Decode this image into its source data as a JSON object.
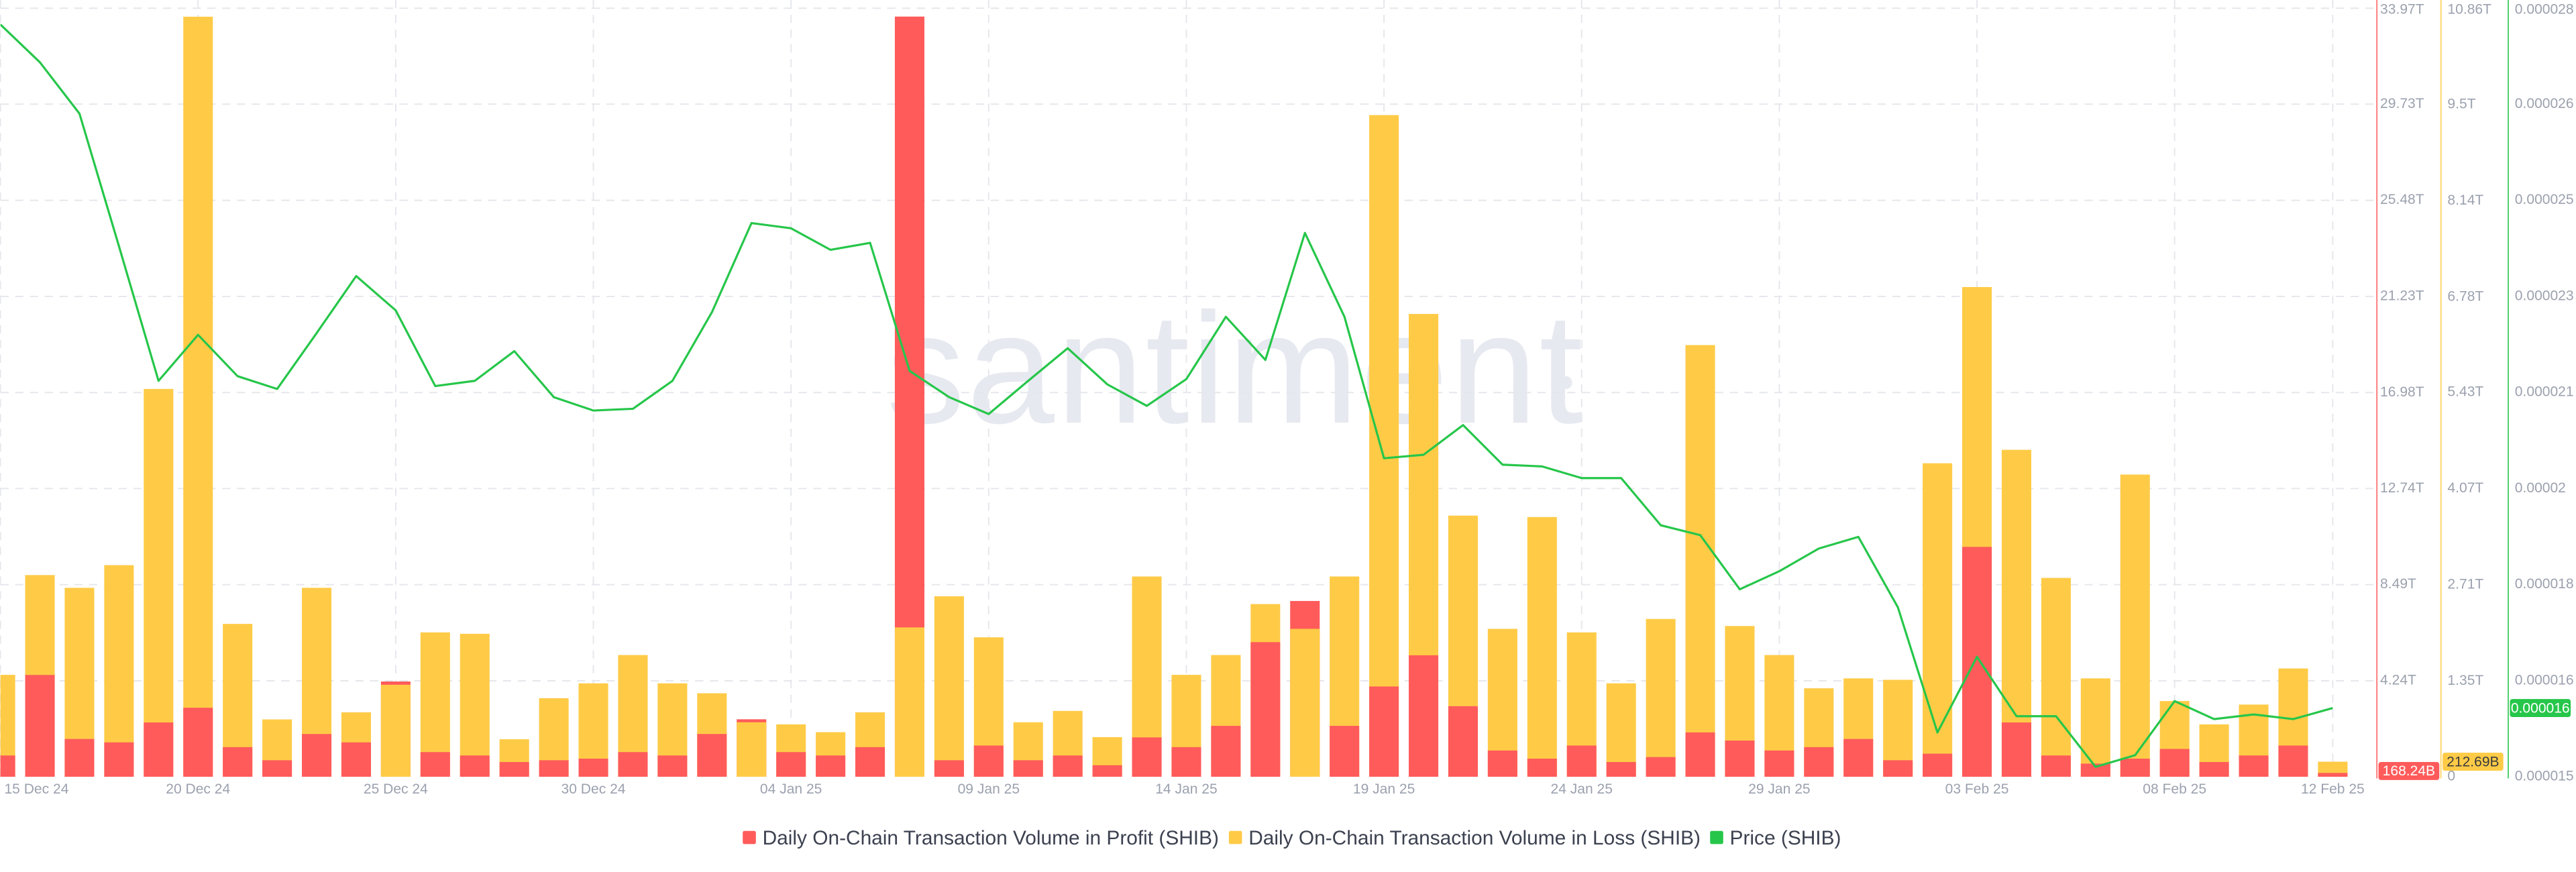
{
  "chart_data": {
    "type": "bar",
    "watermark": "santiment",
    "categories": [
      "15 Dec 24",
      null,
      null,
      null,
      null,
      "20 Dec 24",
      null,
      null,
      null,
      null,
      "25 Dec 24",
      null,
      null,
      null,
      null,
      "30 Dec 24",
      null,
      null,
      null,
      null,
      "04 Jan 25",
      null,
      null,
      null,
      null,
      "09 Jan 25",
      null,
      null,
      null,
      null,
      "14 Jan 25",
      null,
      null,
      null,
      null,
      "19 Jan 25",
      null,
      null,
      null,
      null,
      "24 Jan 25",
      null,
      null,
      null,
      null,
      "29 Jan 25",
      null,
      null,
      null,
      null,
      "03 Feb 25",
      null,
      null,
      null,
      null,
      "08 Feb 25",
      null,
      null,
      null,
      "12 Feb 25"
    ],
    "series": [
      {
        "name": "Daily On-Chain Transaction Volume in Profit (SHIB)",
        "type": "bar",
        "axis": "y",
        "color": "#ff5b5b",
        "values": [
          0.94,
          4.5,
          1.67,
          1.52,
          2.4,
          3.05,
          1.31,
          0.73,
          1.89,
          1.52,
          4.21,
          1.09,
          0.94,
          0.65,
          0.73,
          0.8,
          1.09,
          0.94,
          1.89,
          2.54,
          1.09,
          0.94,
          1.31,
          33.6,
          0.73,
          1.38,
          0.73,
          0.94,
          0.51,
          1.74,
          1.31,
          2.25,
          5.95,
          7.77,
          2.25,
          3.99,
          5.37,
          3.12,
          1.16,
          0.8,
          1.38,
          0.65,
          0.87,
          1.96,
          1.6,
          1.16,
          1.31,
          1.67,
          0.73,
          1.02,
          10.16,
          2.4,
          0.94,
          0.58,
          0.8,
          1.23,
          0.65,
          0.94,
          1.38,
          0.16824
        ],
        "value_labels": [
          null,
          null,
          null,
          null,
          null,
          null,
          null,
          null,
          null,
          null,
          null,
          null,
          null,
          null,
          null,
          null,
          null,
          null,
          null,
          null,
          null,
          null,
          null,
          null,
          null,
          null,
          null,
          null,
          null,
          null,
          null,
          null,
          null,
          null,
          null,
          null,
          null,
          null,
          null,
          null,
          null,
          null,
          null,
          null,
          null,
          null,
          null,
          null,
          null,
          null,
          null,
          null,
          null,
          null,
          null,
          null,
          null,
          null,
          null,
          "168.24B"
        ]
      },
      {
        "name": "Daily On-Chain Transaction Volume in Loss (SHIB)",
        "type": "bar",
        "axis": "y2",
        "color": "#ffcb47",
        "values": [
          1.44,
          2.85,
          2.67,
          2.99,
          5.48,
          10.74,
          2.16,
          0.81,
          2.67,
          0.91,
          1.3,
          2.04,
          2.02,
          0.53,
          1.11,
          1.32,
          1.72,
          1.32,
          1.18,
          0.77,
          0.74,
          0.63,
          0.91,
          2.11,
          2.55,
          1.97,
          0.77,
          0.93,
          0.56,
          2.83,
          1.44,
          1.72,
          2.44,
          2.09,
          2.83,
          9.35,
          6.54,
          3.69,
          2.09,
          3.67,
          2.04,
          1.32,
          2.23,
          6.1,
          2.13,
          1.72,
          1.25,
          1.39,
          1.37,
          4.43,
          6.92,
          4.62,
          2.81,
          1.39,
          4.27,
          1.07,
          0.74,
          1.02,
          1.53,
          0.21269
        ],
        "value_labels": [
          null,
          null,
          null,
          null,
          null,
          null,
          null,
          null,
          null,
          null,
          null,
          null,
          null,
          null,
          null,
          null,
          null,
          null,
          null,
          null,
          null,
          null,
          null,
          null,
          null,
          null,
          null,
          null,
          null,
          null,
          null,
          null,
          null,
          null,
          null,
          null,
          null,
          null,
          null,
          null,
          null,
          null,
          null,
          null,
          null,
          null,
          null,
          null,
          null,
          null,
          null,
          null,
          null,
          null,
          null,
          null,
          null,
          null,
          null,
          "212.69B"
        ]
      },
      {
        "name": "Price (SHIB)",
        "type": "line",
        "axis": "y3",
        "color": "#26c64a",
        "values": [
          2.762e-05,
          2.697e-05,
          2.609e-05,
          2.381e-05,
          2.15e-05,
          2.229e-05,
          2.158e-05,
          2.136e-05,
          2.232e-05,
          2.33e-05,
          2.271e-05,
          2.141e-05,
          2.15e-05,
          2.201e-05,
          2.122e-05,
          2.099e-05,
          2.102e-05,
          2.15e-05,
          2.268e-05,
          2.421e-05,
          2.412e-05,
          2.375e-05,
          2.387e-05,
          2.167e-05,
          2.122e-05,
          2.093e-05,
          2.15e-05,
          2.206e-05,
          2.144e-05,
          2.107e-05,
          2.153e-05,
          2.26e-05,
          2.186e-05,
          2.404e-05,
          2.26e-05,
          2.017e-05,
          2.023e-05,
          2.074e-05,
          2.006e-05,
          2.003e-05,
          1.983e-05,
          1.983e-05,
          1.902e-05,
          1.885e-05,
          1.792e-05,
          1.823e-05,
          1.862e-05,
          1.882e-05,
          1.761e-05,
          1.546e-05,
          1.676e-05,
          1.574e-05,
          1.574e-05,
          1.487e-05,
          1.507e-05,
          1.6e-05,
          1.569e-05,
          1.577e-05,
          1.569e-05,
          1.588e-05
        ],
        "value_labels": [
          null,
          null,
          null,
          null,
          null,
          null,
          null,
          null,
          null,
          null,
          null,
          null,
          null,
          null,
          null,
          null,
          null,
          null,
          null,
          null,
          null,
          null,
          null,
          null,
          null,
          null,
          null,
          null,
          null,
          null,
          null,
          null,
          null,
          null,
          null,
          null,
          null,
          null,
          null,
          null,
          null,
          null,
          null,
          null,
          null,
          null,
          null,
          null,
          null,
          null,
          null,
          null,
          null,
          null,
          null,
          null,
          null,
          null,
          null,
          "0.000016"
        ]
      }
    ],
    "ylim": [
      0,
      33.97
    ],
    "yticks": [
      {
        "value": 4.24,
        "label": "4.24T"
      },
      {
        "value": 8.49,
        "label": "8.49T"
      },
      {
        "value": 12.74,
        "label": "12.74T"
      },
      {
        "value": 16.98,
        "label": "16.98T"
      },
      {
        "value": 21.23,
        "label": "21.23T"
      },
      {
        "value": 25.48,
        "label": "25.48T"
      },
      {
        "value": 29.73,
        "label": "29.73T"
      },
      {
        "value": 33.97,
        "label": "33.97T"
      }
    ],
    "y2lim": [
      0,
      10.86
    ],
    "y2ticks": [
      0,
      {
        "value": 1.35,
        "label": "1.35T"
      },
      {
        "value": 2.71,
        "label": "2.71T"
      },
      {
        "value": 4.07,
        "label": "4.07T"
      },
      {
        "value": 5.43,
        "label": "5.43T"
      },
      {
        "value": 6.78,
        "label": "6.78T"
      },
      {
        "value": 8.14,
        "label": "8.14T"
      },
      {
        "value": 9.5,
        "label": "9.5T"
      },
      {
        "value": 10.86,
        "label": "10.86T"
      }
    ],
    "y3lim": [
      1.47e-05,
      2.79e-05
    ],
    "y3ticks": [
      {
        "value": 1.47e-05,
        "label": "0.000015"
      },
      {
        "value": 1.635e-05,
        "label": "0.000016"
      },
      {
        "value": 1.8e-05,
        "label": "0.000018"
      },
      {
        "value": 1.965e-05,
        "label": "0.00002"
      },
      {
        "value": 2.13e-05,
        "label": "0.000021"
      },
      {
        "value": 2.295e-05,
        "label": "0.000023"
      },
      {
        "value": 2.46e-05,
        "label": "0.000025"
      },
      {
        "value": 2.625e-05,
        "label": "0.000026"
      },
      {
        "value": 2.79e-05,
        "label": "0.000028"
      }
    ],
    "grid": true
  }
}
